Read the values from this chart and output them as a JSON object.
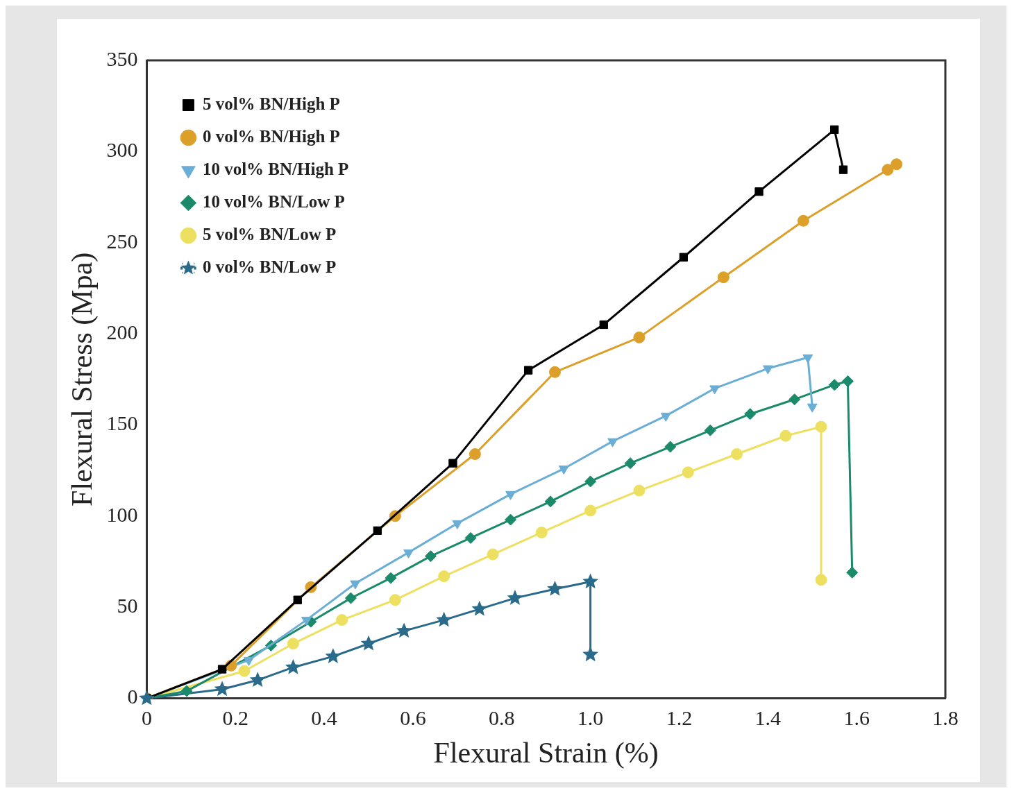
{
  "chart_data": {
    "type": "line",
    "xlabel": "Flexural Strain (%)",
    "ylabel": "Flexural Stress (Mpa)",
    "xlim": [
      0,
      1.8
    ],
    "xticks": [
      0,
      {
        "value": 0.2,
        "label": "0.2"
      },
      {
        "value": 0.4,
        "label": "0.4"
      },
      {
        "value": 0.6,
        "label": "0.6"
      },
      {
        "value": 0.8,
        "label": "0.8"
      },
      {
        "value": 1,
        "label": "1.0"
      },
      {
        "value": 1.2,
        "label": "1.2"
      },
      {
        "value": 1.4,
        "label": "1.4"
      },
      {
        "value": 1.6,
        "label": "1.6"
      },
      {
        "value": 1.8,
        "label": "1.8"
      }
    ],
    "ylim": [
      0,
      350
    ],
    "yticks": [
      0,
      50,
      100,
      150,
      200,
      250,
      300,
      350
    ],
    "grid": false,
    "legend": "top left",
    "line_style": "solid",
    "series": [
      {
        "name": "5 vol% BN/High P",
        "color": "#000000",
        "marker": "square",
        "x": [
          0,
          0.17,
          0.34,
          0.52,
          0.69,
          0.86,
          1.03,
          1.21,
          1.38,
          1.55,
          1.57
        ],
        "values": [
          0,
          16,
          54,
          92,
          129,
          180,
          205,
          242,
          278,
          312,
          290
        ]
      },
      {
        "name": "0 vol% BN/High P",
        "color": "#dca02a",
        "marker": "circle",
        "x": [
          0,
          0.19,
          0.37,
          0.56,
          0.74,
          0.92,
          1.11,
          1.3,
          1.48,
          1.67,
          1.69
        ],
        "values": [
          0,
          18,
          61,
          100,
          134,
          179,
          198,
          231,
          262,
          290,
          293
        ]
      },
      {
        "name": "10 vol% BN/High P",
        "color": "#6aaed6",
        "marker": "triangle",
        "x": [
          0,
          0.23,
          0.36,
          0.47,
          0.59,
          0.7,
          0.82,
          0.94,
          1.05,
          1.17,
          1.28,
          1.4,
          1.49,
          1.5
        ],
        "values": [
          0,
          21,
          43,
          63,
          80,
          96,
          112,
          126,
          141,
          155,
          170,
          181,
          187,
          160
        ]
      },
      {
        "name": "10 vol% BN/Low P",
        "color": "#1a8a6a",
        "marker": "diamond",
        "x": [
          0,
          0.09,
          0.28,
          0.37,
          0.46,
          0.55,
          0.64,
          0.73,
          0.82,
          0.91,
          1,
          1.09,
          1.18,
          1.27,
          1.36,
          1.46,
          1.55,
          1.58,
          1.59
        ],
        "values": [
          0,
          4,
          29,
          42,
          55,
          66,
          78,
          88,
          98,
          108,
          119,
          129,
          138,
          147,
          156,
          164,
          172,
          174,
          69
        ]
      },
      {
        "name": "5 vol% BN/Low P",
        "color": "#ede060",
        "marker": "circle",
        "x": [
          0,
          0.22,
          0.33,
          0.44,
          0.56,
          0.67,
          0.78,
          0.89,
          1,
          1.11,
          1.22,
          1.33,
          1.44,
          1.52,
          1.52
        ],
        "values": [
          0,
          15,
          30,
          43,
          54,
          67,
          79,
          91,
          103,
          114,
          124,
          134,
          144,
          149,
          65
        ]
      },
      {
        "name": "0 vol% BN/Low P",
        "color": "#2a6a8a",
        "marker": "star",
        "x": [
          0,
          0.17,
          0.25,
          0.33,
          0.42,
          0.5,
          0.58,
          0.67,
          0.75,
          0.83,
          0.92,
          1,
          1
        ],
        "values": [
          0,
          5,
          10,
          17,
          23,
          30,
          37,
          43,
          49,
          55,
          60,
          64,
          24
        ]
      }
    ]
  }
}
